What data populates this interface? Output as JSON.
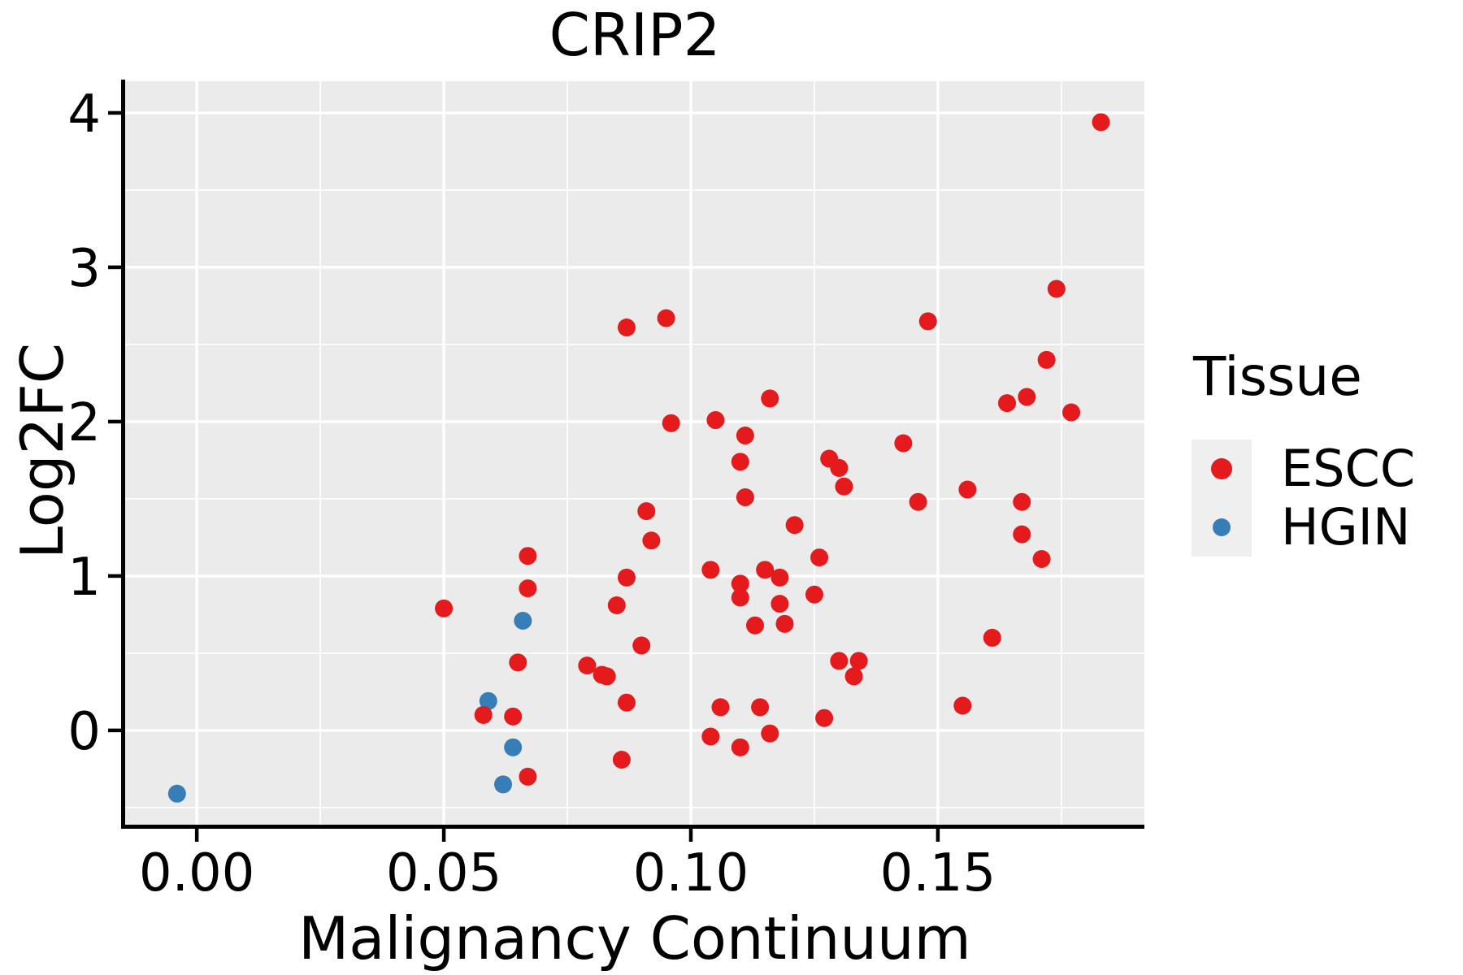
{
  "colors": {
    "escc": "#E41A1C",
    "hgin": "#377EB8",
    "panel_bg": "#EBEBEB",
    "grid": "#FFFFFF",
    "axis": "#000000",
    "legend_key_bg": "#EFEFEF",
    "text": "#000000"
  },
  "chart_data": {
    "type": "scatter",
    "title": "CRIP2",
    "xlabel": "Malignancy Continuum",
    "ylabel": "Log2FC",
    "legend_title": "Tissue",
    "legend_position": "right",
    "grid": "major and minor white gridlines on gray panel",
    "xlim": [
      -0.0145,
      0.1918
    ],
    "ylim": [
      -0.611,
      4.205
    ],
    "x_ticks": [
      {
        "value": 0.0,
        "label": "0.00"
      },
      {
        "value": 0.05,
        "label": "0.05"
      },
      {
        "value": 0.1,
        "label": "0.10"
      },
      {
        "value": 0.15,
        "label": "0.15"
      }
    ],
    "y_ticks": [
      {
        "value": 0,
        "label": "0"
      },
      {
        "value": 1,
        "label": "1"
      },
      {
        "value": 2,
        "label": "2"
      },
      {
        "value": 3,
        "label": "3"
      },
      {
        "value": 4,
        "label": "4"
      }
    ],
    "x_minor_ticks": [
      0.025,
      0.075,
      0.125,
      0.175
    ],
    "y_minor_ticks": [
      -0.5,
      0.5,
      1.5,
      2.5,
      3.5
    ],
    "series": [
      {
        "name": "ESCC",
        "color": "#E41A1C",
        "points": [
          [
            0.183,
            3.94
          ],
          [
            0.174,
            2.86
          ],
          [
            0.148,
            2.65
          ],
          [
            0.172,
            2.4
          ],
          [
            0.087,
            2.61
          ],
          [
            0.095,
            2.67
          ],
          [
            0.116,
            2.15
          ],
          [
            0.164,
            2.12
          ],
          [
            0.168,
            2.16
          ],
          [
            0.177,
            2.06
          ],
          [
            0.096,
            1.99
          ],
          [
            0.105,
            2.01
          ],
          [
            0.111,
            1.91
          ],
          [
            0.11,
            1.74
          ],
          [
            0.111,
            1.51
          ],
          [
            0.091,
            1.42
          ],
          [
            0.092,
            1.23
          ],
          [
            0.067,
            1.13
          ],
          [
            0.128,
            1.76
          ],
          [
            0.13,
            1.7
          ],
          [
            0.131,
            1.58
          ],
          [
            0.143,
            1.86
          ],
          [
            0.146,
            1.48
          ],
          [
            0.156,
            1.56
          ],
          [
            0.167,
            1.48
          ],
          [
            0.121,
            1.33
          ],
          [
            0.167,
            1.27
          ],
          [
            0.126,
            1.12
          ],
          [
            0.171,
            1.11
          ],
          [
            0.115,
            1.04
          ],
          [
            0.118,
            0.99
          ],
          [
            0.11,
            0.95
          ],
          [
            0.11,
            0.86
          ],
          [
            0.118,
            0.82
          ],
          [
            0.113,
            0.68
          ],
          [
            0.119,
            0.69
          ],
          [
            0.125,
            0.88
          ],
          [
            0.161,
            0.6
          ],
          [
            0.104,
            1.04
          ],
          [
            0.05,
            0.79
          ],
          [
            0.09,
            0.55
          ],
          [
            0.087,
            0.99
          ],
          [
            0.085,
            0.81
          ],
          [
            0.079,
            0.42
          ],
          [
            0.082,
            0.36
          ],
          [
            0.083,
            0.35
          ],
          [
            0.065,
            0.44
          ],
          [
            0.067,
            0.92
          ],
          [
            0.058,
            0.1
          ],
          [
            0.064,
            0.09
          ],
          [
            0.067,
            -0.3
          ],
          [
            0.087,
            0.18
          ],
          [
            0.086,
            -0.19
          ],
          [
            0.106,
            0.15
          ],
          [
            0.114,
            0.15
          ],
          [
            0.104,
            -0.04
          ],
          [
            0.11,
            -0.11
          ],
          [
            0.116,
            -0.02
          ],
          [
            0.127,
            0.08
          ],
          [
            0.13,
            0.45
          ],
          [
            0.134,
            0.45
          ],
          [
            0.133,
            0.35
          ],
          [
            0.155,
            0.16
          ]
        ]
      },
      {
        "name": "HGIN",
        "color": "#377EB8",
        "points": [
          [
            -0.004,
            -0.41
          ],
          [
            0.059,
            0.19
          ],
          [
            0.064,
            -0.11
          ],
          [
            0.062,
            -0.35
          ],
          [
            0.066,
            0.71
          ]
        ]
      }
    ]
  }
}
